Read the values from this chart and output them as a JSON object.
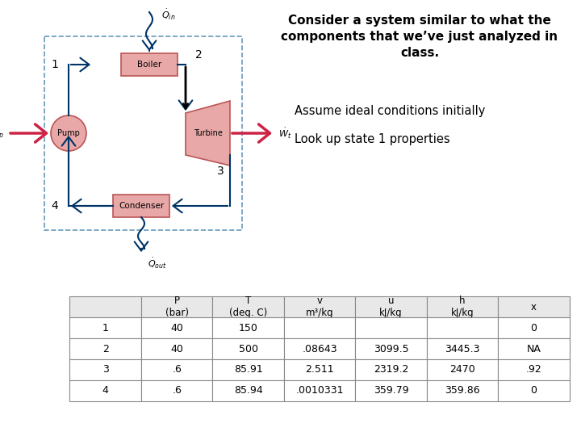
{
  "title_text": "Consider a system similar to what the\ncomponents that we’ve just analyzed in\nclass.",
  "subtitle1": "Assume ideal conditions initially",
  "subtitle2": "Look up state 1 properties",
  "table_headers": [
    "",
    "P\n(bar)",
    "T\n(deg. C)",
    "v\nm³/kg",
    "u\nkJ/kg",
    "h\nkJ/kg",
    "x"
  ],
  "table_rows": [
    [
      "1",
      "40",
      "150",
      "",
      "",
      "",
      "0"
    ],
    [
      "2",
      "40",
      "500",
      ".08643",
      "3099.5",
      "3445.3",
      "NA"
    ],
    [
      "3",
      ".6",
      "85.91",
      "2.511",
      "2319.2",
      "2470",
      ".92"
    ],
    [
      "4",
      ".6",
      "85.94",
      ".0010331",
      "359.79",
      "359.86",
      "0"
    ]
  ],
  "bg_color": "#ffffff",
  "text_color": "#000000",
  "diagram_border_color": "#6699bb",
  "component_fill": "#e8a8a8",
  "component_border": "#bb5555",
  "arrow_color_dark": "#003366",
  "arrow_color_red": "#cc2244",
  "state_label_color": "#000000",
  "title_fontsize": 11,
  "subtitle_fontsize": 10.5,
  "table_fontsize": 9
}
